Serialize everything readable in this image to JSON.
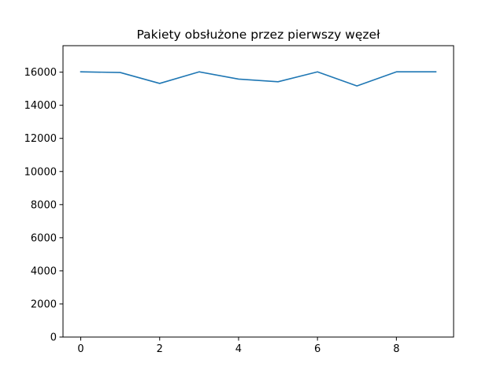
{
  "chart_data": {
    "type": "line",
    "title": "Pakiety obsłużone przez pierwszy węzeł",
    "xlabel": "",
    "ylabel": "",
    "x": [
      0,
      1,
      2,
      3,
      4,
      5,
      6,
      7,
      8,
      9
    ],
    "series": [
      {
        "values": [
          16020,
          15980,
          15320,
          16020,
          15580,
          15420,
          16020,
          15170,
          16020,
          16020
        ],
        "color": "#1f77b4"
      }
    ],
    "xlim": [
      -0.45,
      9.45
    ],
    "ylim": [
      0,
      17600
    ],
    "xticks": [
      0,
      2,
      4,
      6,
      8
    ],
    "yticks": [
      0,
      2000,
      4000,
      6000,
      8000,
      10000,
      12000,
      14000,
      16000
    ],
    "grid": false,
    "legend": "none"
  }
}
